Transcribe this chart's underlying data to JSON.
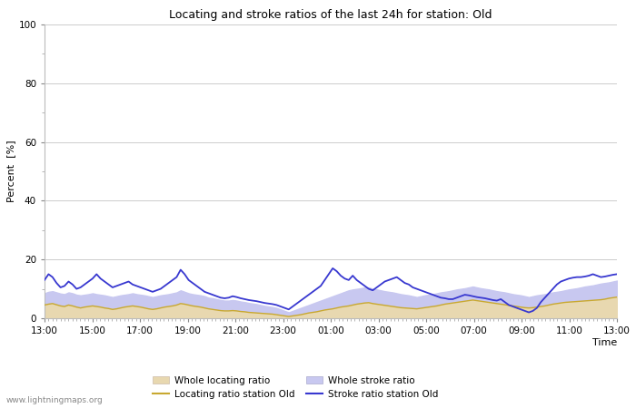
{
  "title": "Locating and stroke ratios of the last 24h for station: Old",
  "xlabel": "Time",
  "ylabel": "Percent  [%]",
  "watermark": "www.lightningmaps.org",
  "xlim": [
    0,
    144
  ],
  "ylim": [
    0,
    100
  ],
  "yticks_major": [
    0,
    20,
    40,
    60,
    80,
    100
  ],
  "yticks_minor": [
    10,
    30,
    50,
    70,
    90
  ],
  "xtick_labels": [
    "13:00",
    "15:00",
    "17:00",
    "19:00",
    "21:00",
    "23:00",
    "01:00",
    "03:00",
    "05:00",
    "07:00",
    "09:00",
    "11:00",
    "13:00"
  ],
  "xtick_positions": [
    0,
    12,
    24,
    36,
    48,
    60,
    72,
    84,
    96,
    108,
    120,
    132,
    144
  ],
  "whole_locating_fill_color": "#e8d8b0",
  "whole_stroke_fill_color": "#c8c8f0",
  "locating_line_color": "#c8a830",
  "stroke_line_color": "#3838d0",
  "whole_locating": [
    4.5,
    4.8,
    5.0,
    4.6,
    4.2,
    4.0,
    4.5,
    4.2,
    3.8,
    3.5,
    3.8,
    4.0,
    4.2,
    4.0,
    3.8,
    3.5,
    3.3,
    3.0,
    3.2,
    3.5,
    3.8,
    4.0,
    4.2,
    4.0,
    3.8,
    3.5,
    3.2,
    3.0,
    3.2,
    3.5,
    3.8,
    4.0,
    4.2,
    4.5,
    5.0,
    4.8,
    4.5,
    4.2,
    4.0,
    3.8,
    3.5,
    3.2,
    3.0,
    2.8,
    2.6,
    2.5,
    2.5,
    2.6,
    2.5,
    2.3,
    2.2,
    2.0,
    1.9,
    1.8,
    1.7,
    1.6,
    1.5,
    1.4,
    1.2,
    1.0,
    0.8,
    0.6,
    0.8,
    1.0,
    1.2,
    1.5,
    1.8,
    2.0,
    2.2,
    2.5,
    2.8,
    3.0,
    3.2,
    3.5,
    3.8,
    4.0,
    4.2,
    4.5,
    4.8,
    5.0,
    5.2,
    5.3,
    5.0,
    4.8,
    4.6,
    4.4,
    4.2,
    4.0,
    3.8,
    3.6,
    3.5,
    3.4,
    3.3,
    3.2,
    3.4,
    3.6,
    3.8,
    4.0,
    4.2,
    4.5,
    4.8,
    5.0,
    5.2,
    5.4,
    5.6,
    5.8,
    6.0,
    6.2,
    6.0,
    5.8,
    5.6,
    5.4,
    5.2,
    5.0,
    4.8,
    4.6,
    4.4,
    4.2,
    4.0,
    3.8,
    3.6,
    3.5,
    3.6,
    3.8,
    4.0,
    4.2,
    4.5,
    4.8,
    5.0,
    5.2,
    5.4,
    5.5,
    5.6,
    5.7,
    5.8,
    5.9,
    6.0,
    6.1,
    6.2,
    6.3,
    6.5,
    6.8,
    7.0,
    7.2
  ],
  "whole_stroke": [
    8.5,
    9.0,
    9.2,
    8.8,
    8.4,
    8.2,
    8.8,
    8.5,
    8.0,
    7.8,
    8.0,
    8.2,
    8.5,
    8.2,
    8.0,
    7.8,
    7.5,
    7.2,
    7.5,
    7.8,
    8.0,
    8.2,
    8.5,
    8.2,
    8.0,
    7.8,
    7.5,
    7.2,
    7.5,
    7.8,
    8.0,
    8.2,
    8.5,
    8.8,
    9.5,
    9.0,
    8.5,
    8.2,
    8.0,
    7.8,
    7.5,
    7.0,
    6.8,
    6.5,
    6.2,
    6.0,
    6.0,
    6.2,
    6.0,
    5.7,
    5.5,
    5.2,
    5.0,
    4.8,
    4.5,
    4.2,
    4.0,
    3.8,
    3.5,
    3.0,
    2.5,
    2.0,
    2.5,
    3.0,
    3.5,
    4.0,
    4.5,
    5.0,
    5.5,
    6.0,
    6.5,
    7.0,
    7.5,
    8.0,
    8.5,
    9.0,
    9.5,
    9.8,
    10.0,
    10.2,
    10.5,
    10.5,
    10.0,
    9.8,
    9.5,
    9.2,
    9.0,
    8.8,
    8.5,
    8.2,
    8.0,
    7.8,
    7.5,
    7.2,
    7.5,
    7.8,
    8.0,
    8.2,
    8.5,
    8.8,
    9.0,
    9.2,
    9.5,
    9.8,
    10.0,
    10.2,
    10.5,
    10.8,
    10.5,
    10.2,
    10.0,
    9.8,
    9.5,
    9.2,
    9.0,
    8.8,
    8.5,
    8.2,
    8.0,
    7.8,
    7.5,
    7.2,
    7.5,
    7.8,
    8.0,
    8.2,
    8.5,
    8.8,
    9.0,
    9.2,
    9.5,
    9.8,
    10.0,
    10.2,
    10.5,
    10.8,
    11.0,
    11.2,
    11.5,
    11.8,
    12.0,
    12.2,
    12.5,
    12.8
  ],
  "stroke_line": [
    13.0,
    15.0,
    14.0,
    12.0,
    10.5,
    11.0,
    12.5,
    11.5,
    10.0,
    10.5,
    11.5,
    12.5,
    13.5,
    15.0,
    13.5,
    12.5,
    11.5,
    10.5,
    11.0,
    11.5,
    12.0,
    12.5,
    11.5,
    11.0,
    10.5,
    10.0,
    9.5,
    9.0,
    9.5,
    10.0,
    11.0,
    12.0,
    13.0,
    14.0,
    16.5,
    15.0,
    13.0,
    12.0,
    11.0,
    10.0,
    9.0,
    8.5,
    8.0,
    7.5,
    7.0,
    6.8,
    7.0,
    7.5,
    7.2,
    6.8,
    6.5,
    6.2,
    6.0,
    5.8,
    5.5,
    5.2,
    5.0,
    4.8,
    4.5,
    4.0,
    3.5,
    3.0,
    4.0,
    5.0,
    6.0,
    7.0,
    8.0,
    9.0,
    10.0,
    11.0,
    13.0,
    15.0,
    17.0,
    16.0,
    14.5,
    13.5,
    13.0,
    14.5,
    13.0,
    12.0,
    11.0,
    10.0,
    9.5,
    10.5,
    11.5,
    12.5,
    13.0,
    13.5,
    14.0,
    13.0,
    12.0,
    11.5,
    10.5,
    10.0,
    9.5,
    9.0,
    8.5,
    8.0,
    7.5,
    7.0,
    6.8,
    6.5,
    6.5,
    7.0,
    7.5,
    8.0,
    7.8,
    7.5,
    7.2,
    7.0,
    6.8,
    6.5,
    6.2,
    6.0,
    6.5,
    5.5,
    4.5,
    4.0,
    3.5,
    3.0,
    2.5,
    2.0,
    2.5,
    3.5,
    5.5,
    7.0,
    8.5,
    10.0,
    11.5,
    12.5,
    13.0,
    13.5,
    13.8,
    14.0,
    14.0,
    14.2,
    14.5,
    15.0,
    14.5,
    14.0,
    14.2,
    14.5,
    14.8,
    15.0
  ]
}
